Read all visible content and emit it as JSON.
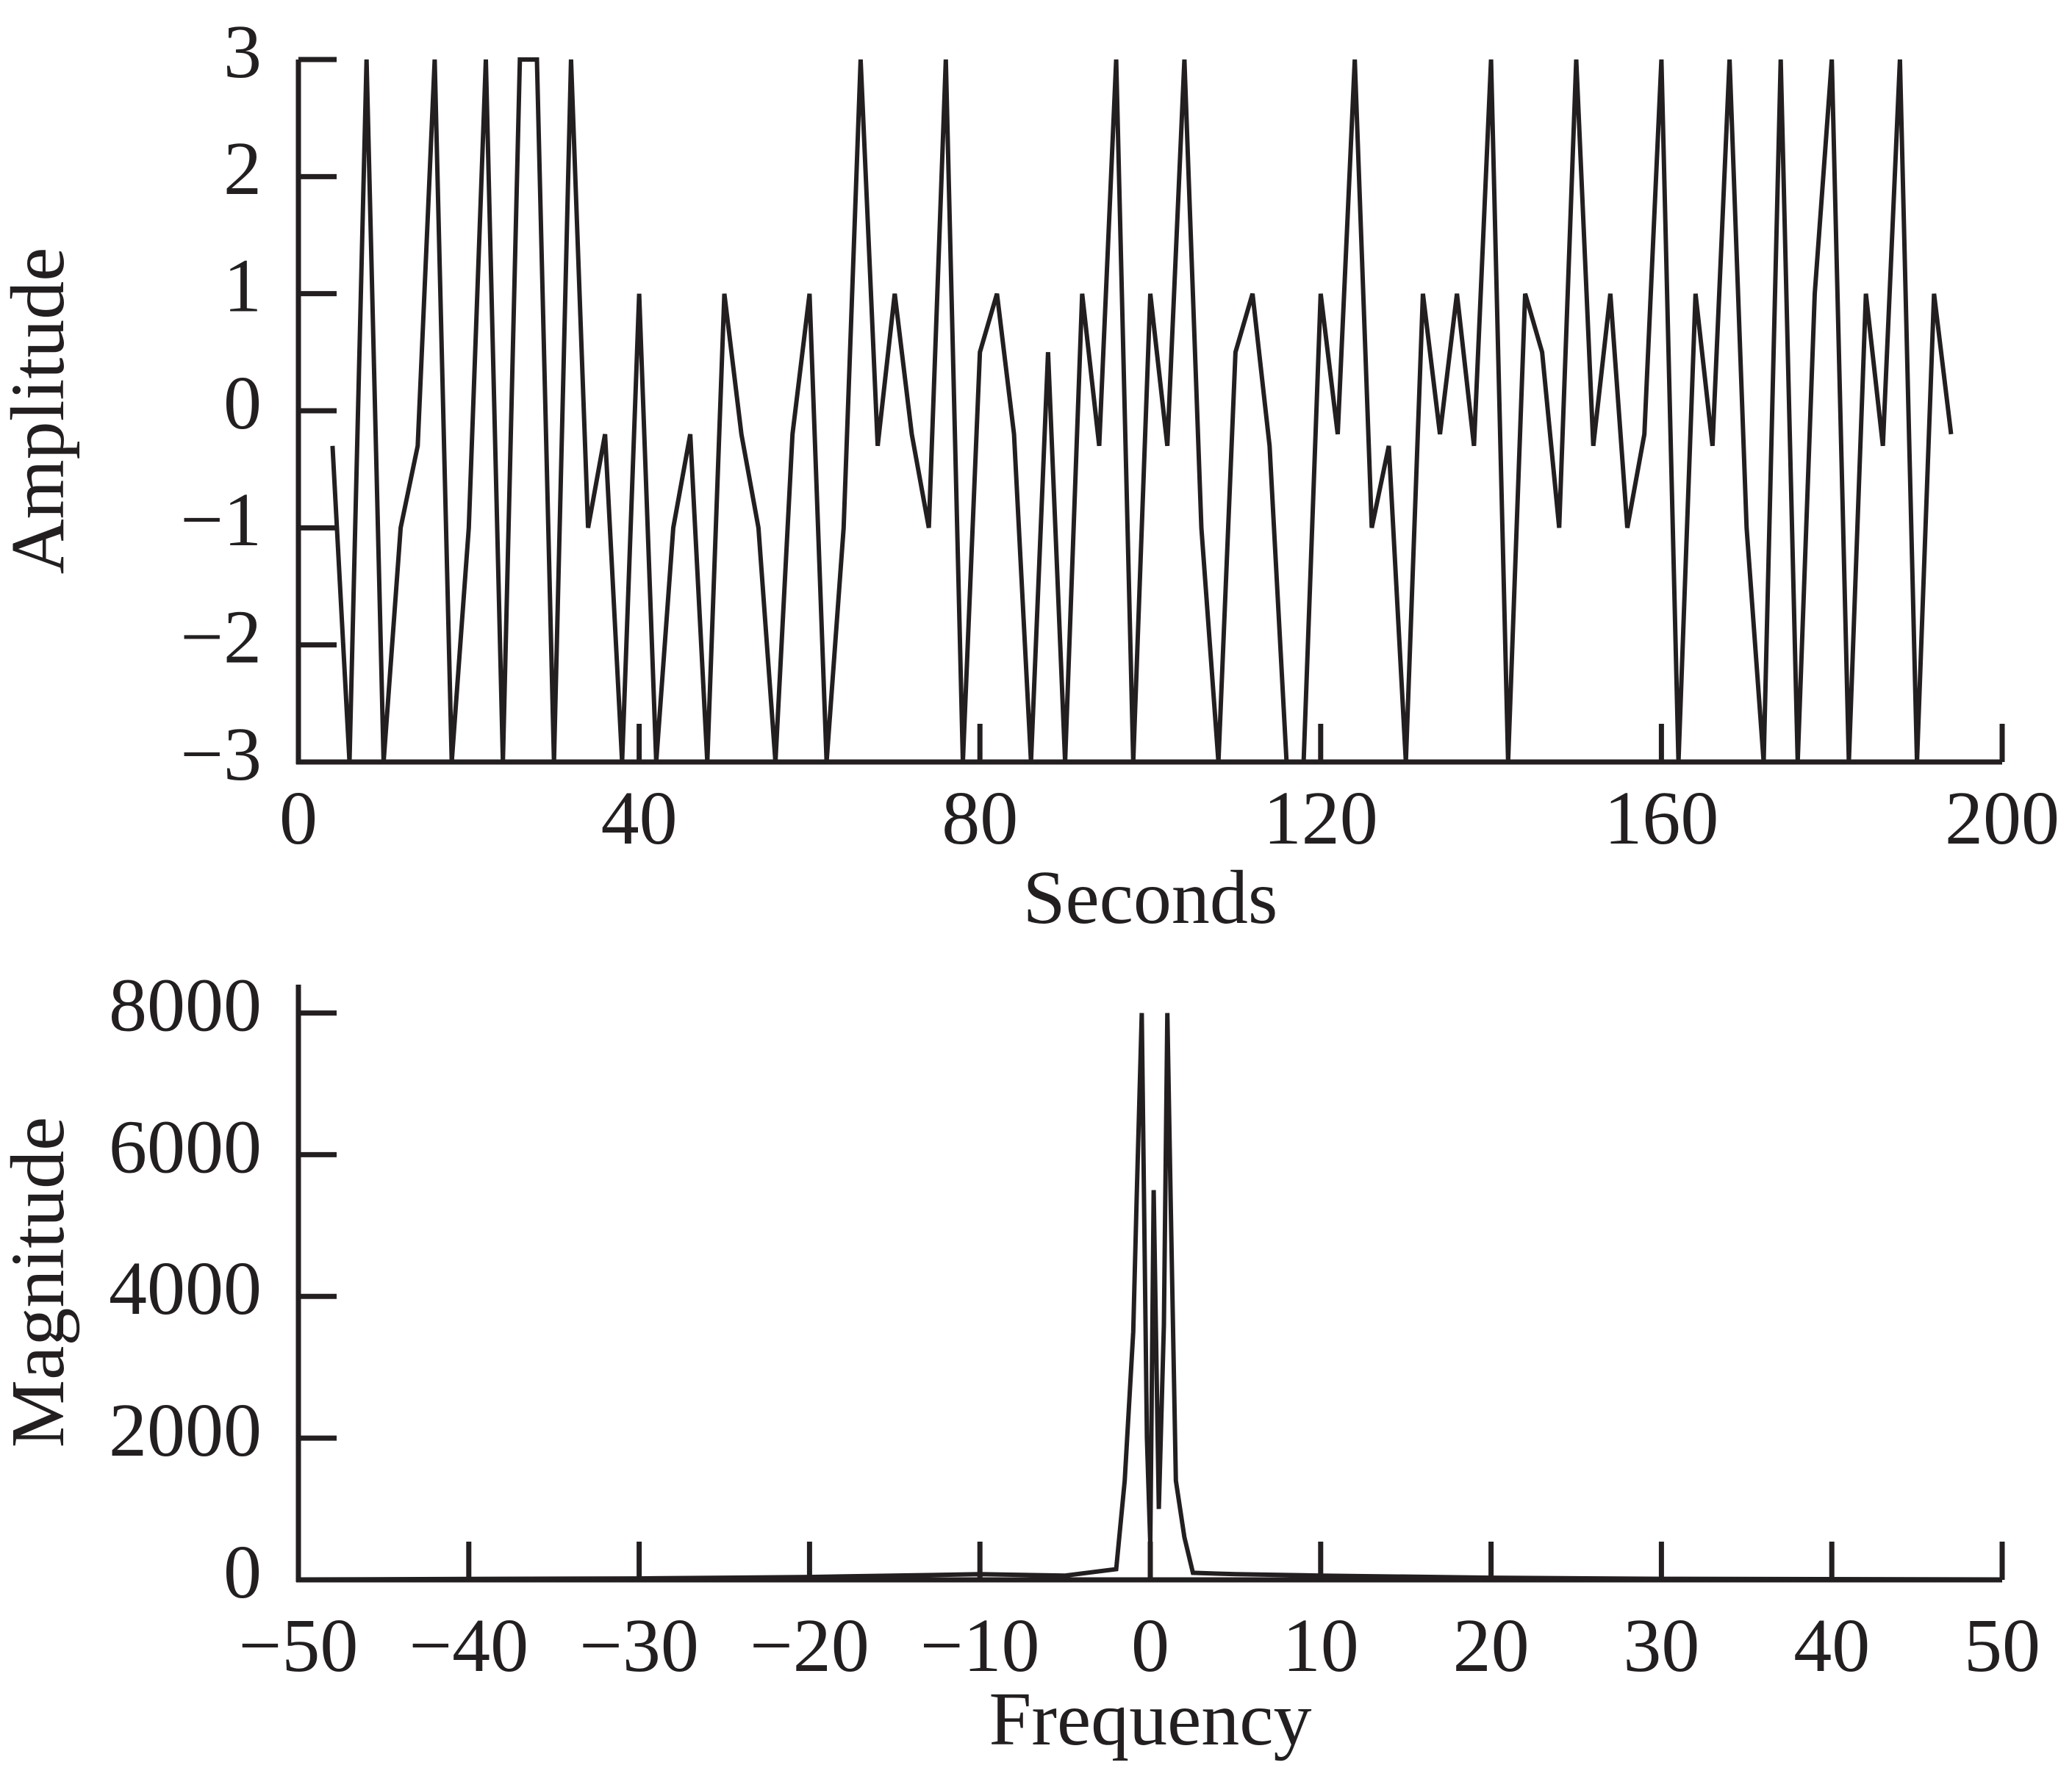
{
  "chart_data": [
    {
      "type": "line",
      "x_label": "Seconds",
      "y_label": "Amplitude",
      "color": "#231f20",
      "x": [
        4,
        6,
        8,
        10,
        12,
        14,
        16,
        18,
        20,
        22,
        24,
        26,
        28,
        30,
        32,
        34,
        36,
        38,
        40,
        42,
        44,
        46,
        48,
        50,
        52,
        54,
        56,
        58,
        60,
        62,
        64,
        66,
        68,
        70,
        72,
        74,
        76,
        78,
        80,
        82,
        84,
        86,
        88,
        90,
        92,
        94,
        96,
        98,
        100,
        102,
        104,
        106,
        108,
        110,
        112,
        114,
        116,
        118,
        120,
        122,
        124,
        126,
        128,
        130,
        132,
        134,
        136,
        138,
        140,
        142,
        144,
        146,
        148,
        150,
        152,
        154,
        156,
        158,
        160,
        162,
        164,
        166,
        168,
        170,
        172,
        174,
        176,
        178,
        180,
        182,
        184,
        186,
        188,
        190,
        192,
        194
      ],
      "values": [
        -0.3,
        -3,
        3,
        -3,
        -1,
        -0.3,
        3,
        -3,
        -1,
        3,
        -3,
        3,
        3,
        -3,
        3,
        -1,
        -0.2,
        -3,
        1,
        -3,
        -1,
        -0.2,
        -3,
        1,
        -0.2,
        -1,
        -3,
        -0.2,
        1,
        -3,
        -1,
        3,
        -0.3,
        1,
        -0.2,
        -1,
        3,
        -3,
        0.5,
        1,
        -0.2,
        -3,
        0.5,
        -3,
        1,
        -0.3,
        3,
        -3,
        1,
        -0.3,
        3,
        -1,
        -3,
        0.5,
        1,
        -0.3,
        -3,
        -3,
        1,
        -0.2,
        3,
        -1,
        -0.3,
        -3,
        1,
        -0.2,
        1,
        -0.3,
        3,
        -3,
        1,
        0.5,
        -1,
        3,
        -0.3,
        1,
        -1,
        -0.2,
        3,
        -3,
        1,
        -0.3,
        3,
        -1,
        -3,
        3,
        -3,
        1,
        3,
        -3,
        1,
        -0.3,
        3,
        -3,
        1,
        -0.2
      ],
      "xlim": [
        0,
        200
      ],
      "xticks": [
        0,
        40,
        80,
        120,
        160,
        200
      ],
      "ylim": [
        -3,
        3
      ],
      "yticks": [
        {
          "value": -3,
          "label": "−3"
        },
        {
          "value": -2,
          "label": "−2"
        },
        {
          "value": -1,
          "label": "−1"
        },
        0,
        1,
        2,
        3
      ]
    },
    {
      "type": "line",
      "x_label": "Frequency",
      "y_label": "Magnitude",
      "color": "#231f20",
      "x": [
        -50,
        -30,
        -20,
        -10,
        -5,
        -2,
        -1.5,
        -1,
        -0.8,
        -0.5,
        -0.2,
        0,
        0.2,
        0.5,
        0.8,
        1,
        1.2,
        1.5,
        2,
        2.5,
        5,
        10,
        20,
        30,
        50
      ],
      "values": [
        5,
        20,
        40,
        80,
        60,
        150,
        1400,
        3500,
        5400,
        8000,
        2000,
        500,
        5500,
        1000,
        3600,
        8000,
        5300,
        1400,
        600,
        100,
        80,
        60,
        30,
        15,
        5
      ],
      "xlim": [
        -50,
        50
      ],
      "xticks": [
        {
          "value": -50,
          "label": "−50"
        },
        {
          "value": -40,
          "label": "−40"
        },
        {
          "value": -30,
          "label": "−30"
        },
        {
          "value": -20,
          "label": "−20"
        },
        {
          "value": -10,
          "label": "−10"
        },
        0,
        10,
        20,
        30,
        40,
        50
      ],
      "ylim": [
        0,
        8400
      ],
      "yticks": [
        0,
        2000,
        4000,
        6000,
        8000
      ]
    }
  ]
}
